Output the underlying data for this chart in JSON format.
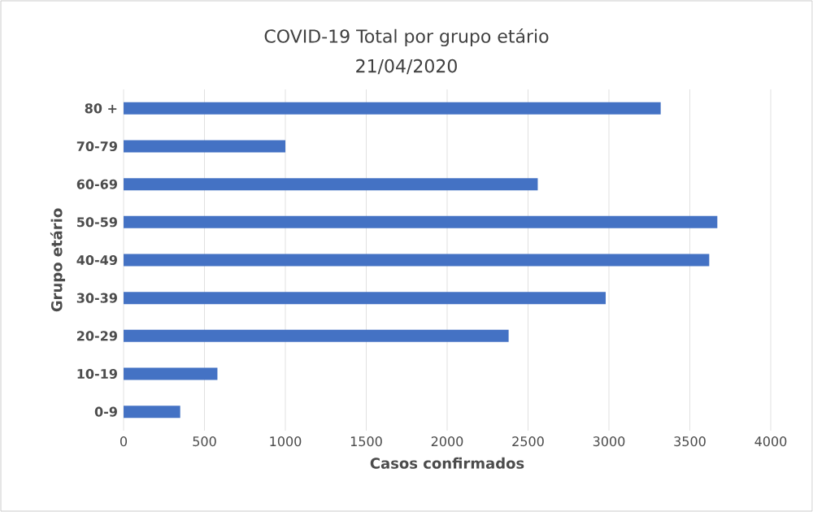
{
  "chart_data": {
    "type": "bar",
    "orientation": "horizontal",
    "title": "COVID-19 Total  por grupo etário",
    "subtitle": "21/04/2020",
    "xlabel": "Casos confirmados",
    "ylabel": "Grupo etário",
    "categories": [
      "80 +",
      "70-79",
      "60-69",
      "50-59",
      "40-49",
      "30-39",
      "20-29",
      "10-19",
      "0-9"
    ],
    "values": [
      3320,
      1000,
      2560,
      3670,
      3620,
      2980,
      2380,
      580,
      350
    ],
    "color": "#4472c4",
    "xlim": [
      0,
      4000
    ],
    "xticks": [
      0,
      500,
      1000,
      1500,
      2000,
      2500,
      3000,
      3500,
      4000
    ],
    "grid": "x"
  }
}
